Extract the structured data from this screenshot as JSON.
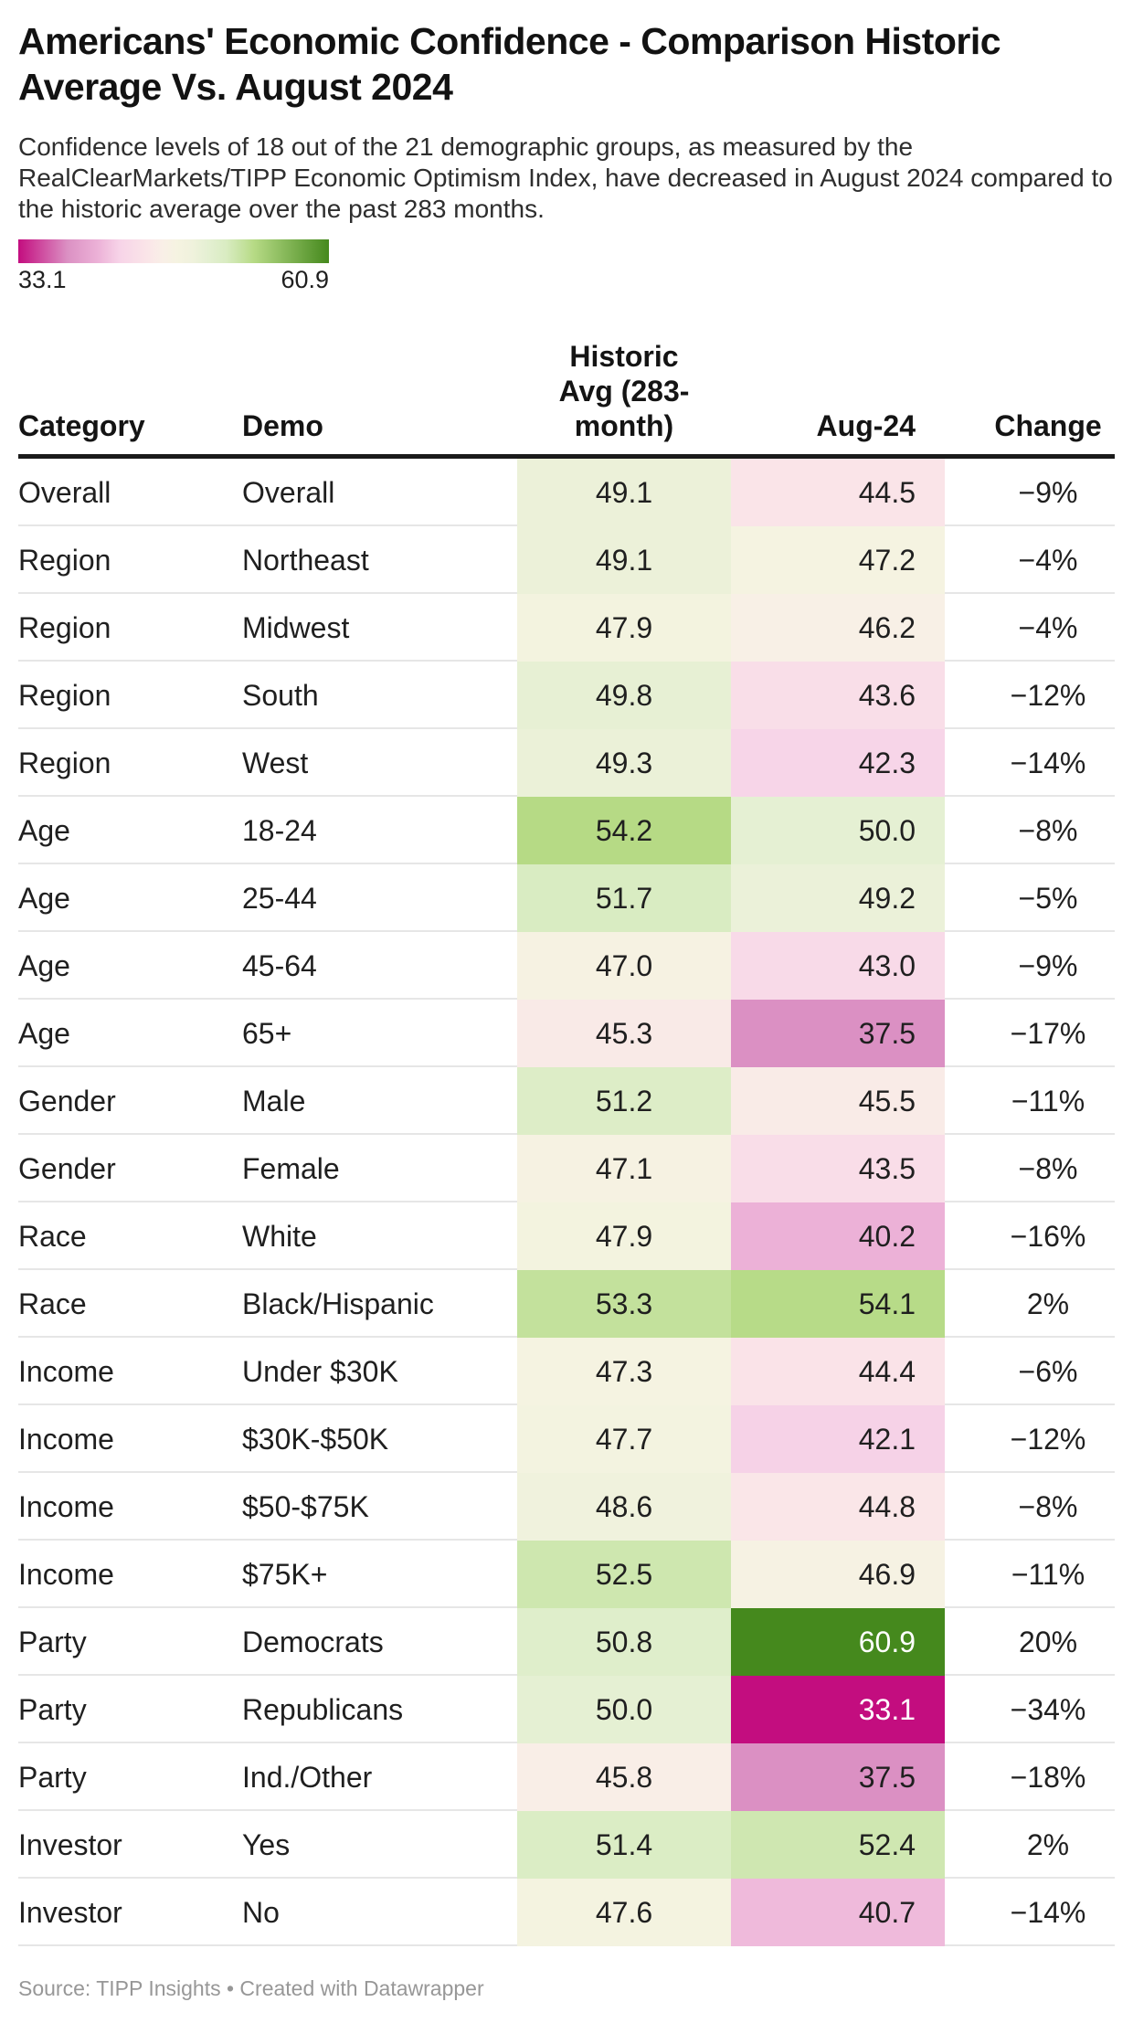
{
  "chart_data": {
    "type": "table",
    "title": "Americans' Economic Confidence - Comparison Historic Average Vs. August 2024",
    "description": "Confidence levels of 18 out of the 21 demographic groups, as measured by the RealClearMarkets/TIPP Economic Optimism Index, have decreased in August 2024 compared to the historic average over the past 283 months.",
    "columns": [
      "Category",
      "Demo",
      "Historic Avg (283-month)",
      "Aug-24",
      "Change"
    ],
    "header_display": [
      "Category",
      "Demo",
      "Historic\nAvg (283-\nmonth)",
      "Aug-24",
      "Change"
    ],
    "rows": [
      {
        "category": "Overall",
        "demo": "Overall",
        "historic_avg": 49.1,
        "aug_24": 44.5,
        "change": "−9%"
      },
      {
        "category": "Region",
        "demo": "Northeast",
        "historic_avg": 49.1,
        "aug_24": 47.2,
        "change": "−4%"
      },
      {
        "category": "Region",
        "demo": "Midwest",
        "historic_avg": 47.9,
        "aug_24": 46.2,
        "change": "−4%"
      },
      {
        "category": "Region",
        "demo": "South",
        "historic_avg": 49.8,
        "aug_24": 43.6,
        "change": "−12%"
      },
      {
        "category": "Region",
        "demo": "West",
        "historic_avg": 49.3,
        "aug_24": 42.3,
        "change": "−14%"
      },
      {
        "category": "Age",
        "demo": "18-24",
        "historic_avg": 54.2,
        "aug_24": 50.0,
        "change": "−8%"
      },
      {
        "category": "Age",
        "demo": "25-44",
        "historic_avg": 51.7,
        "aug_24": 49.2,
        "change": "−5%"
      },
      {
        "category": "Age",
        "demo": "45-64",
        "historic_avg": 47.0,
        "aug_24": 43.0,
        "change": "−9%"
      },
      {
        "category": "Age",
        "demo": "65+",
        "historic_avg": 45.3,
        "aug_24": 37.5,
        "change": "−17%"
      },
      {
        "category": "Gender",
        "demo": "Male",
        "historic_avg": 51.2,
        "aug_24": 45.5,
        "change": "−11%"
      },
      {
        "category": "Gender",
        "demo": "Female",
        "historic_avg": 47.1,
        "aug_24": 43.5,
        "change": "−8%"
      },
      {
        "category": "Race",
        "demo": "White",
        "historic_avg": 47.9,
        "aug_24": 40.2,
        "change": "−16%"
      },
      {
        "category": "Race",
        "demo": "Black/Hispanic",
        "historic_avg": 53.3,
        "aug_24": 54.1,
        "change": "2%"
      },
      {
        "category": "Income",
        "demo": "Under $30K",
        "historic_avg": 47.3,
        "aug_24": 44.4,
        "change": "−6%"
      },
      {
        "category": "Income",
        "demo": "$30K-$50K",
        "historic_avg": 47.7,
        "aug_24": 42.1,
        "change": "−12%"
      },
      {
        "category": "Income",
        "demo": "$50-$75K",
        "historic_avg": 48.6,
        "aug_24": 44.8,
        "change": "−8%"
      },
      {
        "category": "Income",
        "demo": "$75K+",
        "historic_avg": 52.5,
        "aug_24": 46.9,
        "change": "−11%"
      },
      {
        "category": "Party",
        "demo": "Democrats",
        "historic_avg": 50.8,
        "aug_24": 60.9,
        "change": "20%"
      },
      {
        "category": "Party",
        "demo": "Republicans",
        "historic_avg": 50.0,
        "aug_24": 33.1,
        "change": "−34%"
      },
      {
        "category": "Party",
        "demo": "Ind./Other",
        "historic_avg": 45.8,
        "aug_24": 37.5,
        "change": "−18%"
      },
      {
        "category": "Investor",
        "demo": "Yes",
        "historic_avg": 51.4,
        "aug_24": 52.4,
        "change": "2%"
      },
      {
        "category": "Investor",
        "demo": "No",
        "historic_avg": 47.6,
        "aug_24": 40.7,
        "change": "−14%"
      }
    ],
    "color_scale": {
      "type": "diverging",
      "min": 33.1,
      "max": 60.9,
      "min_label": "33.1",
      "max_label": "60.9",
      "stops": [
        {
          "v": 33.1,
          "color": "#c30d7f"
        },
        {
          "v": 37.5,
          "color": "#db90c3"
        },
        {
          "v": 40.2,
          "color": "#ecb1d7"
        },
        {
          "v": 42.2,
          "color": "#f7d4e8"
        },
        {
          "v": 44.5,
          "color": "#fae4e8"
        },
        {
          "v": 46.0,
          "color": "#f9efe7"
        },
        {
          "v": 47.3,
          "color": "#f5f3e1"
        },
        {
          "v": 48.6,
          "color": "#f0f2dd"
        },
        {
          "v": 50.0,
          "color": "#e5f0d3"
        },
        {
          "v": 51.7,
          "color": "#d9ecc2"
        },
        {
          "v": 53.3,
          "color": "#c3e19c"
        },
        {
          "v": 54.2,
          "color": "#b6da85"
        },
        {
          "v": 60.9,
          "color": "#45891d"
        }
      ]
    },
    "footer": "Source: TIPP Insights • Created with Datawrapper"
  }
}
